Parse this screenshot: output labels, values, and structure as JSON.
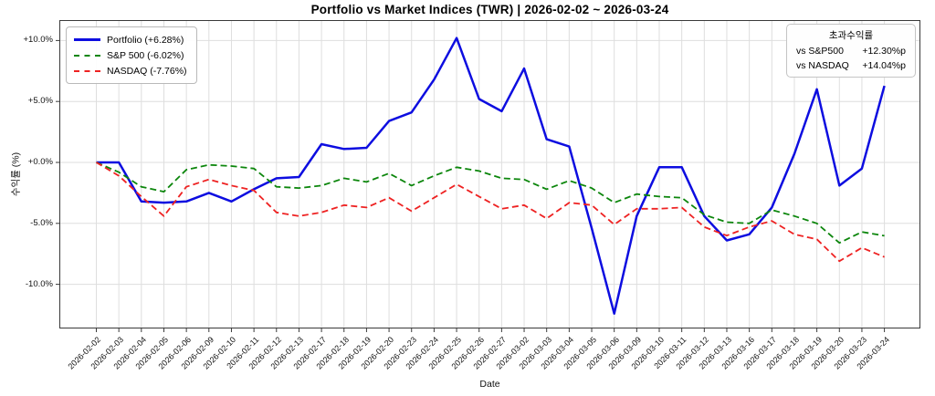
{
  "title": "Portfolio vs Market Indices (TWR) | 2026-02-02 ~ 2026-03-24",
  "axes": {
    "xlabel": "Date",
    "ylabel": "수익률 (%)",
    "ytick_labels": [
      "+10.0%",
      "+5.0%",
      "+0.0%",
      "-5.0%",
      "-10.0%"
    ]
  },
  "legend": [
    {
      "key": "portfolio",
      "label": "Portfolio (+6.28%)",
      "color": "#0d0de0",
      "dash": false
    },
    {
      "key": "sp500",
      "label": "S&P 500 (-6.02%)",
      "color": "#0c860c",
      "dash": true
    },
    {
      "key": "nasdaq",
      "label": "NASDAQ (-7.76%)",
      "color": "#ee2222",
      "dash": true
    }
  ],
  "annotation": {
    "title": "초과수익률",
    "rows": [
      {
        "label": "vs S&P500",
        "value": "+12.30%p"
      },
      {
        "label": "vs NASDAQ",
        "value": "+14.04%p"
      }
    ]
  },
  "chart_data": {
    "type": "line",
    "title": "Portfolio vs Market Indices (TWR) | 2026-02-02 ~ 2026-03-24",
    "xlabel": "Date",
    "ylabel": "수익률 (%)",
    "grid": true,
    "legend_position": "upper left",
    "ylim": [
      -13.6,
      11.7
    ],
    "ytick_values": [
      10,
      5,
      0,
      -5,
      -10
    ],
    "x": [
      "2026-02-02",
      "2026-02-03",
      "2026-02-04",
      "2026-02-05",
      "2026-02-06",
      "2026-02-09",
      "2026-02-10",
      "2026-02-11",
      "2026-02-12",
      "2026-02-13",
      "2026-02-17",
      "2026-02-18",
      "2026-02-19",
      "2026-02-20",
      "2026-02-23",
      "2026-02-24",
      "2026-02-25",
      "2026-02-26",
      "2026-02-27",
      "2026-03-02",
      "2026-03-03",
      "2026-03-04",
      "2026-03-05",
      "2026-03-06",
      "2026-03-09",
      "2026-03-10",
      "2026-03-11",
      "2026-03-12",
      "2026-03-13",
      "2026-03-16",
      "2026-03-17",
      "2026-03-18",
      "2026-03-19",
      "2026-03-20",
      "2026-03-23",
      "2026-03-24"
    ],
    "series": [
      {
        "key": "portfolio",
        "name": "Portfolio",
        "final": "+6.28%",
        "color": "#0d0de0",
        "dash": false,
        "width": 2.5,
        "values": [
          0.0,
          0.0,
          -3.2,
          -3.3,
          -3.2,
          -2.5,
          -3.2,
          -2.2,
          -1.3,
          -1.2,
          1.5,
          1.1,
          1.2,
          3.4,
          4.1,
          6.8,
          10.2,
          5.2,
          4.2,
          7.7,
          1.9,
          1.3,
          -5.4,
          -12.4,
          -4.4,
          -0.4,
          -0.4,
          -4.4,
          -6.4,
          -5.9,
          -3.7,
          0.7,
          6.0,
          -1.9,
          -0.5,
          6.28
        ]
      },
      {
        "key": "sp500",
        "name": "S&P 500",
        "final": "-6.02%",
        "color": "#0c860c",
        "dash": true,
        "width": 1.8,
        "values": [
          0.0,
          -0.8,
          -2.0,
          -2.4,
          -0.6,
          -0.2,
          -0.3,
          -0.5,
          -2.0,
          -2.1,
          -1.9,
          -1.3,
          -1.6,
          -0.9,
          -1.9,
          -1.1,
          -0.4,
          -0.7,
          -1.3,
          -1.4,
          -2.2,
          -1.5,
          -2.1,
          -3.3,
          -2.6,
          -2.8,
          -2.9,
          -4.3,
          -4.9,
          -5.0,
          -3.9,
          -4.4,
          -5.0,
          -6.6,
          -5.7,
          -6.02
        ]
      },
      {
        "key": "nasdaq",
        "name": "NASDAQ",
        "final": "-7.76%",
        "color": "#ee2222",
        "dash": true,
        "width": 1.8,
        "values": [
          0.0,
          -1.1,
          -2.8,
          -4.4,
          -2.0,
          -1.4,
          -1.9,
          -2.3,
          -4.1,
          -4.4,
          -4.1,
          -3.5,
          -3.7,
          -2.9,
          -4.0,
          -2.9,
          -1.8,
          -2.8,
          -3.8,
          -3.5,
          -4.6,
          -3.3,
          -3.5,
          -5.1,
          -3.8,
          -3.8,
          -3.7,
          -5.3,
          -6.0,
          -5.3,
          -4.8,
          -5.9,
          -6.3,
          -8.1,
          -7.0,
          -7.76
        ]
      }
    ]
  }
}
